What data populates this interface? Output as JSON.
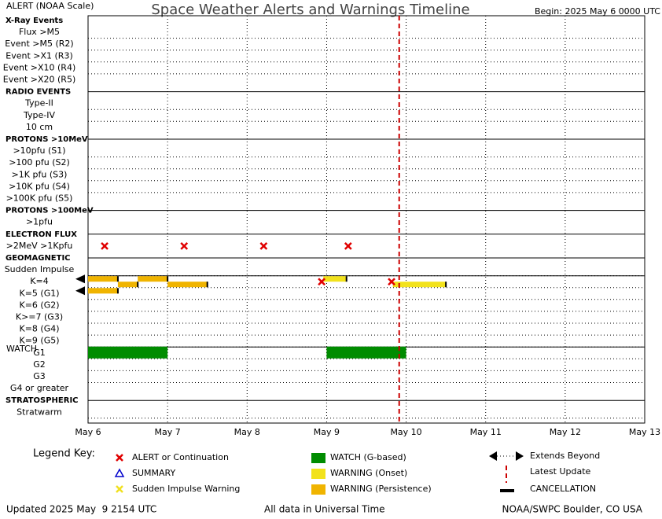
{
  "chart_data": {
    "type": "timeline",
    "title": "Space Weather Alerts and Warnings Timeline",
    "scale_note": "ALERT (NOAA Scale)",
    "begin": "Begin: 2025 May 6 0000 UTC",
    "watch_label": "WATCH",
    "rows": [
      {
        "label": "X-Ray Events",
        "header": true
      },
      {
        "label": "Flux >M5",
        "header": false
      },
      {
        "label": "Event >M5 (R2)",
        "header": false
      },
      {
        "label": "Event >X1 (R3)",
        "header": false
      },
      {
        "label": "Event >X10 (R4)",
        "header": false
      },
      {
        "label": "Event >X20 (R5)",
        "header": false
      },
      {
        "label": "RADIO EVENTS",
        "header": true
      },
      {
        "label": "Type-II",
        "header": false
      },
      {
        "label": "Type-IV",
        "header": false
      },
      {
        "label": "10 cm",
        "header": false
      },
      {
        "label": "PROTONS >10MeV",
        "header": true
      },
      {
        "label": ">10pfu (S1)",
        "header": false
      },
      {
        "label": ">100 pfu (S2)",
        "header": false
      },
      {
        "label": ">1K pfu (S3)",
        "header": false
      },
      {
        "label": ">10K pfu (S4)",
        "header": false
      },
      {
        "label": ">100K pfu (S5)",
        "header": false
      },
      {
        "label": "PROTONS >100MeV",
        "header": true
      },
      {
        "label": ">1pfu",
        "header": false
      },
      {
        "label": "ELECTRON FLUX",
        "header": true
      },
      {
        "label": ">2MeV >1Kpfu",
        "header": false
      },
      {
        "label": "GEOMAGNETIC",
        "header": true
      },
      {
        "label": "Sudden Impulse",
        "header": false
      },
      {
        "label": "K=4",
        "header": false
      },
      {
        "label": "K=5 (G1)",
        "header": false
      },
      {
        "label": "K=6 (G2)",
        "header": false
      },
      {
        "label": "K>=7 (G3)",
        "header": false
      },
      {
        "label": "K=8 (G4)",
        "header": false
      },
      {
        "label": "K=9 (G5)",
        "header": false
      },
      {
        "label": "G1",
        "header": false
      },
      {
        "label": "G2",
        "header": false
      },
      {
        "label": "G3",
        "header": false
      },
      {
        "label": "G4 or greater",
        "header": false
      },
      {
        "label": "STRATOSPHERIC",
        "header": true
      },
      {
        "label": "Stratwarm",
        "header": false
      }
    ],
    "xlim": [
      0,
      168
    ],
    "xticks": [
      {
        "value": 0,
        "label": "May 6"
      },
      {
        "value": 24,
        "label": "May 7"
      },
      {
        "value": 48,
        "label": "May 8"
      },
      {
        "value": 72,
        "label": "May 9"
      },
      {
        "value": 96,
        "label": "May 10"
      },
      {
        "value": 120,
        "label": "May 11"
      },
      {
        "value": 144,
        "label": "May 12"
      },
      {
        "value": 168,
        "label": "May 13"
      }
    ],
    "bars": [
      {
        "row": 22,
        "start": 0,
        "end": 9,
        "kind": 5,
        "extends": true
      },
      {
        "row": 22,
        "start": 9,
        "end": 15,
        "kind": 5,
        "extends": false
      },
      {
        "row": 22,
        "start": 15,
        "end": 24,
        "kind": 5,
        "extends": false
      },
      {
        "row": 22,
        "start": 24,
        "end": 36,
        "kind": 5,
        "extends": false
      },
      {
        "row": 22,
        "start": 71,
        "end": 78,
        "kind": 4,
        "extends": false
      },
      {
        "row": 22,
        "start": 92,
        "end": 108,
        "kind": 4,
        "extends": false
      },
      {
        "row": 23,
        "start": 0,
        "end": 9,
        "kind": 5,
        "extends": true
      },
      {
        "row": 28,
        "start": 0,
        "end": 24,
        "kind": 3,
        "extends": false
      },
      {
        "row": 28,
        "start": 72,
        "end": 96,
        "kind": 3,
        "extends": false
      }
    ],
    "alerts": [
      {
        "row": 19,
        "x": 5,
        "kind": 0
      },
      {
        "row": 19,
        "x": 29,
        "kind": 0
      },
      {
        "row": 19,
        "x": 53,
        "kind": 0
      },
      {
        "row": 19,
        "x": 78.5,
        "kind": 0
      },
      {
        "row": 22,
        "x": 70.5,
        "kind": 0
      },
      {
        "row": 22,
        "x": 91.6,
        "kind": 0
      }
    ],
    "latest_update": 93.9,
    "legend": {
      "title": "Legend Key:",
      "items": [
        {
          "label": "ALERT or Continuation",
          "symbol": "x",
          "color": "#e00000"
        },
        {
          "label": "SUMMARY",
          "symbol": "triangle",
          "color": "#0000cc"
        },
        {
          "label": "Sudden Impulse Warning",
          "symbol": "x",
          "color": "#f0e020"
        },
        {
          "label": "WATCH (G-based)",
          "symbol": "rect",
          "color": "#008c00"
        },
        {
          "label": "WARNING (Onset)",
          "symbol": "rect",
          "color": "#f2e21c"
        },
        {
          "label": "WARNING (Persistence)",
          "symbol": "rect",
          "color": "#f0b400"
        },
        {
          "label": "Extends Beyond",
          "symbol": "arrows",
          "color": "#000000"
        },
        {
          "label": "Latest Update",
          "symbol": "dashed",
          "color": "#cc0000"
        },
        {
          "label": "CANCELLATION",
          "symbol": "bar",
          "color": "#000000"
        }
      ]
    },
    "footer": {
      "updated": "Updated 2025 May  9 2154 UTC",
      "note": "All data in Universal Time",
      "credit": "NOAA/SWPC Boulder, CO USA"
    }
  }
}
